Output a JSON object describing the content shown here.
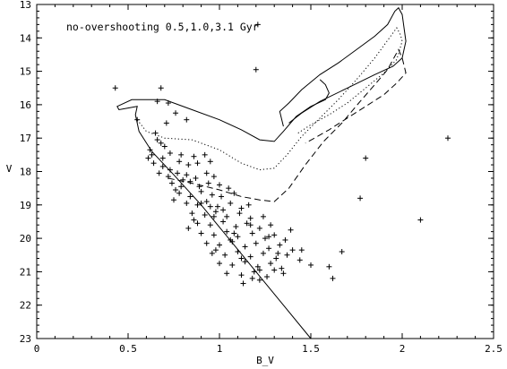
{
  "chart_data": {
    "type": "scatter",
    "title": "",
    "annotation": "no-overshooting 0.5,1.0,3.1 Gyr",
    "xlabel": "B_V",
    "ylabel": "V",
    "xlim": [
      0,
      2.5
    ],
    "ylim": [
      23,
      13
    ],
    "y_inverted": true,
    "grid": false,
    "x_ticks": [
      0,
      0.5,
      1,
      1.5,
      2,
      2.5
    ],
    "x_tick_labels": [
      "0",
      "0.5",
      "1",
      "1.5",
      "2",
      "2.5"
    ],
    "y_ticks": [
      13,
      14,
      15,
      16,
      17,
      18,
      19,
      20,
      21,
      22,
      23
    ],
    "y_tick_labels": [
      "13",
      "14",
      "15",
      "16",
      "17",
      "18",
      "19",
      "20",
      "21",
      "22",
      "23"
    ],
    "series": [
      {
        "style": "points",
        "marker": "plus",
        "points": [
          [
            0.43,
            15.5
          ],
          [
            0.68,
            15.5
          ],
          [
            1.21,
            13.6
          ],
          [
            1.2,
            14.95
          ],
          [
            0.66,
            15.9
          ],
          [
            0.72,
            15.95
          ],
          [
            0.55,
            16.45
          ],
          [
            0.76,
            16.25
          ],
          [
            0.82,
            16.45
          ],
          [
            0.71,
            16.55
          ],
          [
            0.65,
            16.85
          ],
          [
            0.66,
            17.05
          ],
          [
            0.68,
            17.15
          ],
          [
            0.62,
            17.35
          ],
          [
            0.61,
            17.6
          ],
          [
            0.69,
            17.6
          ],
          [
            0.73,
            17.45
          ],
          [
            0.79,
            17.5
          ],
          [
            0.86,
            17.55
          ],
          [
            0.92,
            17.5
          ],
          [
            0.64,
            17.75
          ],
          [
            0.69,
            17.85
          ],
          [
            0.73,
            17.95
          ],
          [
            0.78,
            17.7
          ],
          [
            0.83,
            17.8
          ],
          [
            0.88,
            17.75
          ],
          [
            0.95,
            17.7
          ],
          [
            0.67,
            18.05
          ],
          [
            0.72,
            18.15
          ],
          [
            0.77,
            18.05
          ],
          [
            0.82,
            18.1
          ],
          [
            0.87,
            18.2
          ],
          [
            0.93,
            18.05
          ],
          [
            0.97,
            18.15
          ],
          [
            0.74,
            18.35
          ],
          [
            0.79,
            18.45
          ],
          [
            0.84,
            18.3
          ],
          [
            0.89,
            18.45
          ],
          [
            0.94,
            18.35
          ],
          [
            1.0,
            18.4
          ],
          [
            1.05,
            18.5
          ],
          [
            0.78,
            18.65
          ],
          [
            0.84,
            18.75
          ],
          [
            0.9,
            18.6
          ],
          [
            0.96,
            18.7
          ],
          [
            1.01,
            18.75
          ],
          [
            1.08,
            18.65
          ],
          [
            0.82,
            18.95
          ],
          [
            0.88,
            19.0
          ],
          [
            0.93,
            18.9
          ],
          [
            0.99,
            19.05
          ],
          [
            1.06,
            18.95
          ],
          [
            1.12,
            19.1
          ],
          [
            1.16,
            19.0
          ],
          [
            0.85,
            19.25
          ],
          [
            0.92,
            19.3
          ],
          [
            0.98,
            19.2
          ],
          [
            1.04,
            19.35
          ],
          [
            1.11,
            19.25
          ],
          [
            1.17,
            19.4
          ],
          [
            1.24,
            19.35
          ],
          [
            0.88,
            19.55
          ],
          [
            0.95,
            19.6
          ],
          [
            1.02,
            19.5
          ],
          [
            1.09,
            19.65
          ],
          [
            1.15,
            19.55
          ],
          [
            1.22,
            19.7
          ],
          [
            1.28,
            19.6
          ],
          [
            0.9,
            19.85
          ],
          [
            0.97,
            19.9
          ],
          [
            1.04,
            19.8
          ],
          [
            1.1,
            19.95
          ],
          [
            1.18,
            19.85
          ],
          [
            1.25,
            20.0
          ],
          [
            1.3,
            19.9
          ],
          [
            1.36,
            20.05
          ],
          [
            0.93,
            20.15
          ],
          [
            1.0,
            20.2
          ],
          [
            1.07,
            20.1
          ],
          [
            1.14,
            20.25
          ],
          [
            1.2,
            20.15
          ],
          [
            1.27,
            20.3
          ],
          [
            1.33,
            20.2
          ],
          [
            1.4,
            20.35
          ],
          [
            0.96,
            20.45
          ],
          [
            1.03,
            20.5
          ],
          [
            1.1,
            20.4
          ],
          [
            1.17,
            20.55
          ],
          [
            1.24,
            20.45
          ],
          [
            1.31,
            20.6
          ],
          [
            1.37,
            20.5
          ],
          [
            1.44,
            20.65
          ],
          [
            1.0,
            20.75
          ],
          [
            1.07,
            20.8
          ],
          [
            1.14,
            20.7
          ],
          [
            1.21,
            20.85
          ],
          [
            1.28,
            20.75
          ],
          [
            1.34,
            20.9
          ],
          [
            1.04,
            21.05
          ],
          [
            1.12,
            21.1
          ],
          [
            1.19,
            21.0
          ],
          [
            1.26,
            21.15
          ],
          [
            1.13,
            21.35
          ],
          [
            1.22,
            21.25
          ],
          [
            1.5,
            20.8
          ],
          [
            1.6,
            20.85
          ],
          [
            1.62,
            21.2
          ],
          [
            1.67,
            20.4
          ],
          [
            1.8,
            17.6
          ],
          [
            1.77,
            18.8
          ],
          [
            2.1,
            19.45
          ],
          [
            2.25,
            17.0
          ],
          [
            0.76,
            18.55
          ],
          [
            0.8,
            18.25
          ],
          [
            0.86,
            19.45
          ],
          [
            0.95,
            19.05
          ],
          [
            1.12,
            20.6
          ],
          [
            1.3,
            20.95
          ],
          [
            1.39,
            19.75
          ],
          [
            1.45,
            20.35
          ],
          [
            1.17,
            19.6
          ],
          [
            1.08,
            19.85
          ],
          [
            0.98,
            20.35
          ],
          [
            1.22,
            20.95
          ],
          [
            0.9,
            18.95
          ],
          [
            1.02,
            19.15
          ],
          [
            1.32,
            20.45
          ],
          [
            1.18,
            21.2
          ],
          [
            0.7,
            17.25
          ],
          [
            0.63,
            17.5
          ],
          [
            0.75,
            18.85
          ],
          [
            1.35,
            21.05
          ],
          [
            1.27,
            19.95
          ],
          [
            0.83,
            19.7
          ],
          [
            0.97,
            19.35
          ],
          [
            1.06,
            20.05
          ]
        ]
      },
      {
        "style": "solid",
        "points": [
          [
            1.5,
            23.0
          ],
          [
            1.35,
            22.0
          ],
          [
            1.2,
            21.0
          ],
          [
            1.05,
            20.0
          ],
          [
            0.9,
            19.0
          ],
          [
            0.75,
            18.1
          ],
          [
            0.63,
            17.4
          ],
          [
            0.56,
            16.8
          ],
          [
            0.54,
            16.3
          ],
          [
            0.55,
            16.05
          ],
          [
            0.5,
            16.1
          ],
          [
            0.45,
            16.15
          ],
          [
            0.44,
            16.05
          ],
          [
            0.52,
            15.85
          ],
          [
            0.7,
            15.85
          ],
          [
            0.85,
            16.15
          ],
          [
            1.0,
            16.45
          ],
          [
            1.12,
            16.75
          ],
          [
            1.22,
            17.05
          ],
          [
            1.3,
            17.1
          ],
          [
            1.35,
            16.8
          ],
          [
            1.42,
            16.35
          ],
          [
            1.5,
            16.05
          ],
          [
            1.58,
            15.85
          ],
          [
            1.6,
            15.65
          ],
          [
            1.58,
            15.4
          ],
          [
            1.55,
            15.25
          ]
        ]
      },
      {
        "style": "solid",
        "points": [
          [
            1.35,
            16.65
          ],
          [
            1.33,
            16.2
          ],
          [
            1.38,
            15.95
          ],
          [
            1.45,
            15.55
          ],
          [
            1.55,
            15.1
          ],
          [
            1.65,
            14.75
          ],
          [
            1.75,
            14.35
          ],
          [
            1.85,
            13.95
          ],
          [
            1.92,
            13.6
          ],
          [
            1.96,
            13.2
          ],
          [
            1.98,
            13.1
          ],
          [
            2.0,
            13.3
          ],
          [
            2.02,
            14.1
          ],
          [
            2.0,
            14.6
          ],
          [
            1.95,
            14.85
          ],
          [
            1.85,
            15.1
          ],
          [
            1.7,
            15.5
          ],
          [
            1.55,
            15.9
          ],
          [
            1.45,
            16.25
          ],
          [
            1.38,
            16.55
          ]
        ]
      },
      {
        "style": "dotted",
        "points": [
          [
            0.55,
            16.45
          ],
          [
            0.6,
            16.8
          ],
          [
            0.7,
            17.0
          ],
          [
            0.85,
            17.05
          ],
          [
            1.0,
            17.35
          ],
          [
            1.12,
            17.75
          ],
          [
            1.22,
            17.95
          ],
          [
            1.3,
            17.9
          ],
          [
            1.37,
            17.5
          ],
          [
            1.45,
            16.95
          ],
          [
            1.55,
            16.4
          ],
          [
            1.65,
            15.85
          ],
          [
            1.75,
            15.25
          ],
          [
            1.85,
            14.6
          ],
          [
            1.93,
            14.0
          ],
          [
            1.97,
            13.7
          ],
          [
            1.99,
            13.9
          ],
          [
            2.0,
            14.1
          ],
          [
            1.97,
            14.65
          ],
          [
            1.9,
            15.05
          ],
          [
            1.8,
            15.5
          ],
          [
            1.7,
            15.95
          ],
          [
            1.6,
            16.3
          ],
          [
            1.5,
            16.6
          ],
          [
            1.43,
            16.85
          ]
        ]
      },
      {
        "style": "dashed",
        "points": [
          [
            0.72,
            18.2
          ],
          [
            0.85,
            18.35
          ],
          [
            1.0,
            18.55
          ],
          [
            1.12,
            18.75
          ],
          [
            1.22,
            18.85
          ],
          [
            1.3,
            18.9
          ],
          [
            1.38,
            18.5
          ],
          [
            1.47,
            17.8
          ],
          [
            1.57,
            17.1
          ],
          [
            1.67,
            16.55
          ],
          [
            1.77,
            15.9
          ],
          [
            1.85,
            15.4
          ],
          [
            1.92,
            14.95
          ],
          [
            1.96,
            14.55
          ],
          [
            1.98,
            14.35
          ],
          [
            2.0,
            14.6
          ],
          [
            2.02,
            15.05
          ],
          [
            1.97,
            15.35
          ],
          [
            1.9,
            15.7
          ],
          [
            1.8,
            16.05
          ],
          [
            1.7,
            16.4
          ],
          [
            1.6,
            16.75
          ],
          [
            1.52,
            17.0
          ],
          [
            1.47,
            17.15
          ]
        ]
      }
    ]
  }
}
